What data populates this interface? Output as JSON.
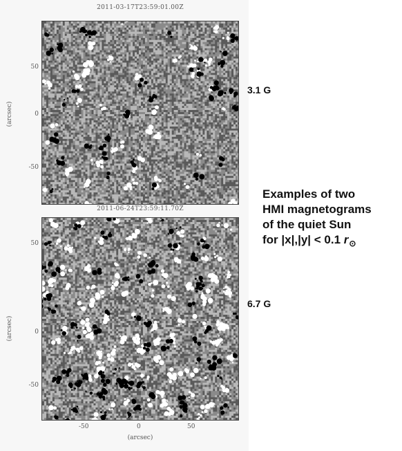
{
  "panels": [
    {
      "title": "2011-03-17T23:59:01.00Z",
      "field_label": "3.1 G",
      "y_ticks": [
        "50",
        "0",
        "-50"
      ],
      "y_label": "(arcsec)"
    },
    {
      "title": "2011-06-24T23:59:11.70Z",
      "field_label": "6.7 G",
      "y_ticks": [
        "50",
        "0",
        "-50"
      ],
      "y_label": "(arcsec)"
    }
  ],
  "x_ticks": [
    "-50",
    "0",
    "50"
  ],
  "x_label": "(arcsec)",
  "caption": {
    "line1": "Examples of two",
    "line2": "HMI magnetograms",
    "line3": "of the quiet Sun",
    "line4_prefix": "for  |x|,|y| <  0.1 ",
    "line4_symbol": "r",
    "sun_symbol": "⊙"
  },
  "colors": {
    "background": "#ffffff",
    "figure_background": "#f7f7f7",
    "magnetogram_gray": "#8a8a8a",
    "positive_polarity": "#ffffff",
    "negative_polarity": "#000000"
  }
}
